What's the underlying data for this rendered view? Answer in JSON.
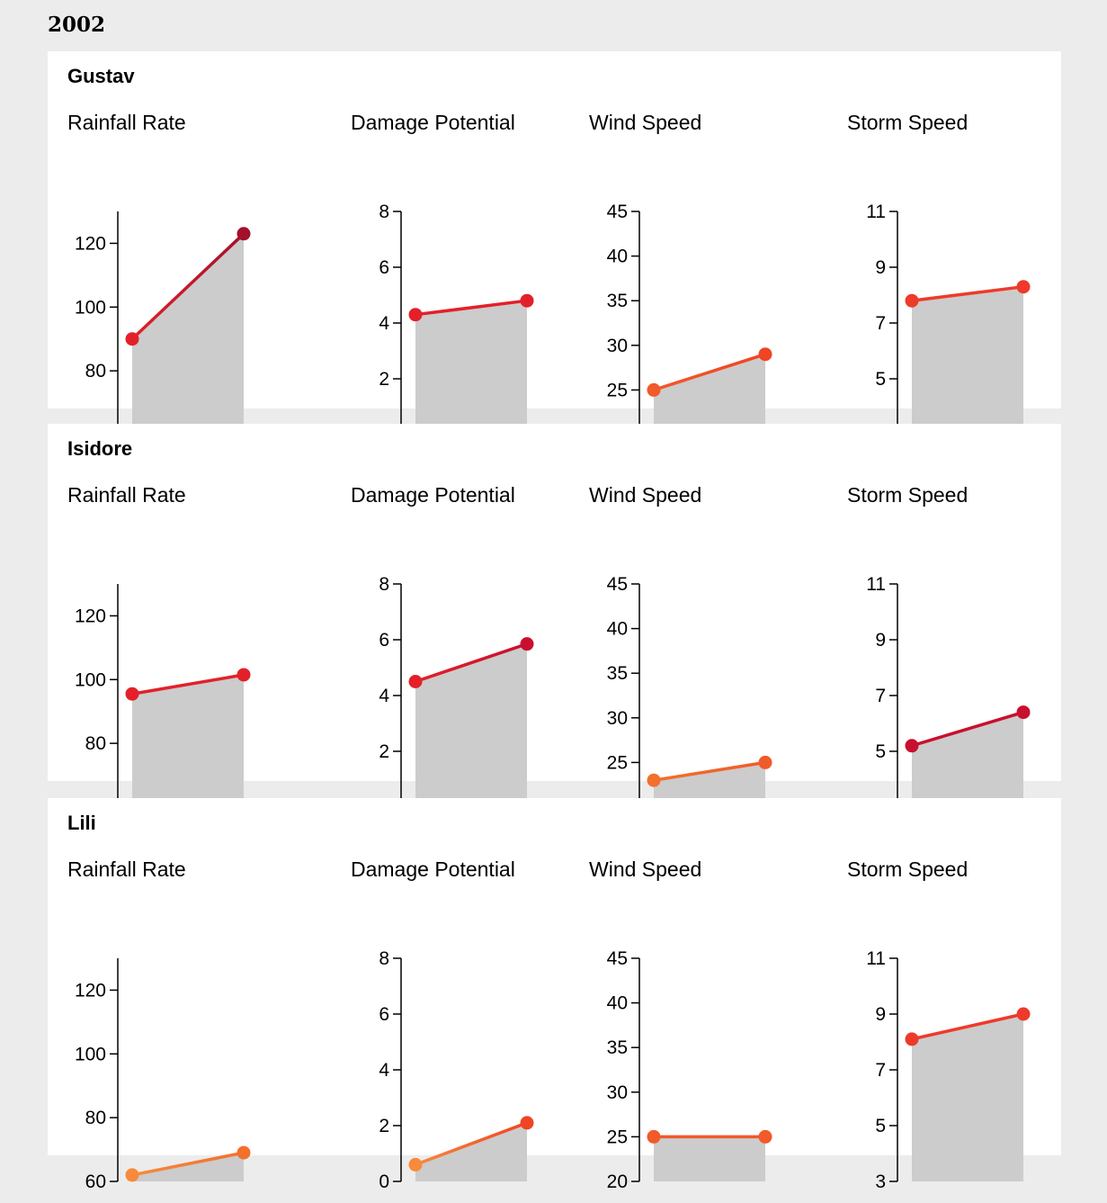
{
  "year": "2002",
  "metrics": [
    {
      "title": "Rainfall Rate",
      "ylim": [
        60,
        130
      ],
      "ticks": [
        60,
        80,
        100,
        120
      ]
    },
    {
      "title": "Damage Potential",
      "ylim": [
        0,
        8
      ],
      "ticks": [
        0,
        2,
        4,
        6,
        8
      ]
    },
    {
      "title": "Wind Speed",
      "ylim": [
        20,
        45
      ],
      "ticks": [
        20,
        25,
        30,
        35,
        40,
        45
      ]
    },
    {
      "title": "Storm Speed",
      "ylim": [
        3,
        11
      ],
      "ticks": [
        3,
        5,
        7,
        9,
        11
      ]
    }
  ],
  "chart_data": [
    {
      "storm": "Gustav",
      "type": "area",
      "series": [
        {
          "metric": "Rainfall Rate",
          "values": [
            90,
            123
          ],
          "colors": [
            "#e3202a",
            "#a3102c"
          ]
        },
        {
          "metric": "Damage Potential",
          "values": [
            4.3,
            4.8
          ],
          "colors": [
            "#e3202a",
            "#e3202a"
          ]
        },
        {
          "metric": "Wind Speed",
          "values": [
            25,
            29
          ],
          "colors": [
            "#f15a2b",
            "#f04424"
          ]
        },
        {
          "metric": "Storm Speed",
          "values": [
            7.8,
            8.3
          ],
          "colors": [
            "#ee3a2a",
            "#ee3a2a"
          ]
        }
      ]
    },
    {
      "storm": "Isidore",
      "type": "area",
      "series": [
        {
          "metric": "Rainfall Rate",
          "values": [
            95.5,
            101.5
          ],
          "colors": [
            "#e3202a",
            "#e3202a"
          ]
        },
        {
          "metric": "Damage Potential",
          "values": [
            4.5,
            5.85
          ],
          "colors": [
            "#e3202a",
            "#c8102e"
          ]
        },
        {
          "metric": "Wind Speed",
          "values": [
            23,
            25
          ],
          "colors": [
            "#f3702d",
            "#f15a2b"
          ]
        },
        {
          "metric": "Storm Speed",
          "values": [
            5.2,
            6.4
          ],
          "colors": [
            "#c8102e",
            "#c8102e"
          ]
        }
      ]
    },
    {
      "storm": "Lili",
      "type": "area",
      "series": [
        {
          "metric": "Rainfall Rate",
          "values": [
            62,
            69
          ],
          "colors": [
            "#f78a3c",
            "#f3702d"
          ]
        },
        {
          "metric": "Damage Potential",
          "values": [
            0.6,
            2.1
          ],
          "colors": [
            "#f78a3c",
            "#f04424"
          ]
        },
        {
          "metric": "Wind Speed",
          "values": [
            25,
            25
          ],
          "colors": [
            "#f15a2b",
            "#f15a2b"
          ]
        },
        {
          "metric": "Storm Speed",
          "values": [
            8.1,
            9.0
          ],
          "colors": [
            "#ee3a2a",
            "#ee3a2a"
          ]
        }
      ]
    }
  ]
}
